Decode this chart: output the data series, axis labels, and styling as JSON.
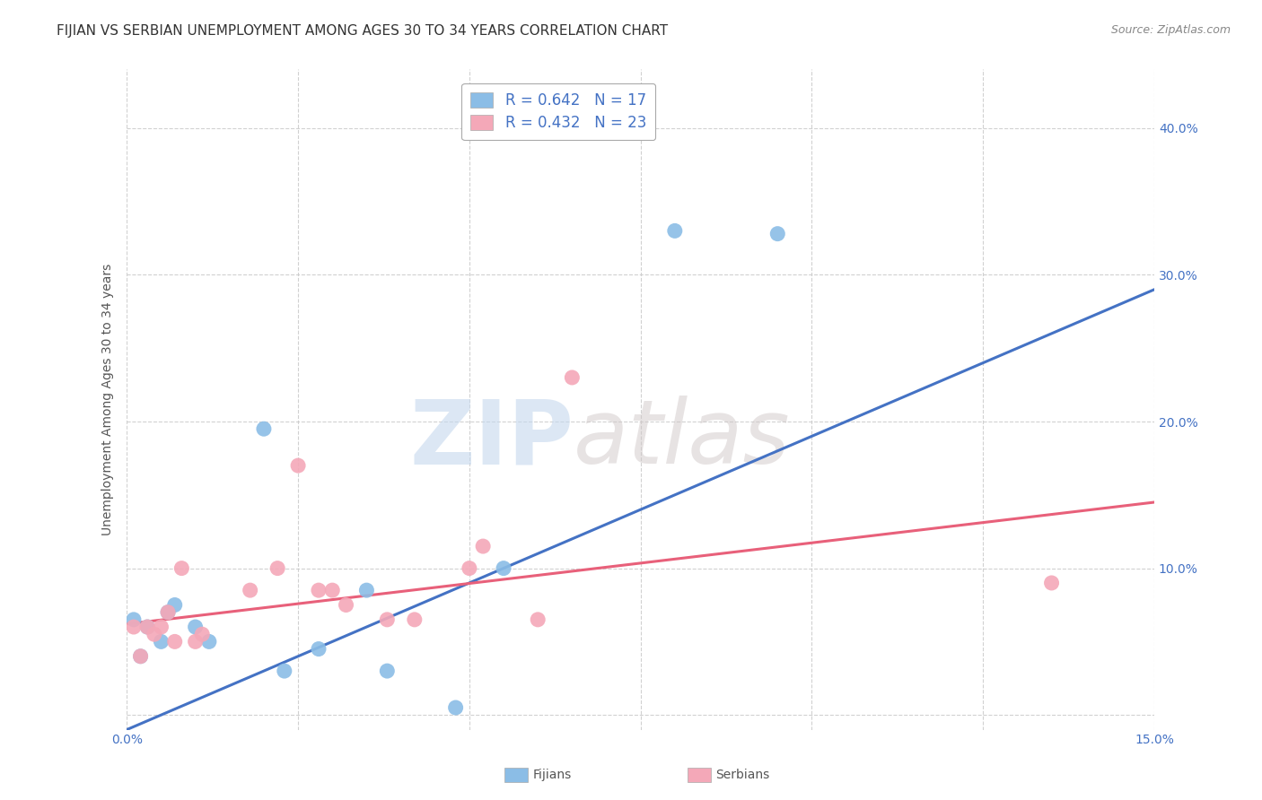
{
  "title": "FIJIAN VS SERBIAN UNEMPLOYMENT AMONG AGES 30 TO 34 YEARS CORRELATION CHART",
  "source": "Source: ZipAtlas.com",
  "ylabel": "Unemployment Among Ages 30 to 34 years",
  "xlim": [
    0.0,
    0.15
  ],
  "ylim": [
    -0.01,
    0.44
  ],
  "xticks": [
    0.0,
    0.025,
    0.05,
    0.075,
    0.1,
    0.125,
    0.15
  ],
  "xticklabels": [
    "0.0%",
    "",
    "",
    "",
    "",
    "",
    "15.0%"
  ],
  "yticks": [
    0.0,
    0.1,
    0.2,
    0.3,
    0.4
  ],
  "yticklabels": [
    "",
    "10.0%",
    "20.0%",
    "30.0%",
    "40.0%"
  ],
  "fijian_x": [
    0.001,
    0.002,
    0.003,
    0.005,
    0.006,
    0.007,
    0.01,
    0.012,
    0.02,
    0.023,
    0.028,
    0.035,
    0.038,
    0.048,
    0.055,
    0.08,
    0.095
  ],
  "fijian_y": [
    0.065,
    0.04,
    0.06,
    0.05,
    0.07,
    0.075,
    0.06,
    0.05,
    0.195,
    0.03,
    0.045,
    0.085,
    0.03,
    0.005,
    0.1,
    0.33,
    0.328
  ],
  "serbian_x": [
    0.001,
    0.002,
    0.003,
    0.004,
    0.005,
    0.006,
    0.007,
    0.008,
    0.01,
    0.011,
    0.018,
    0.022,
    0.025,
    0.028,
    0.03,
    0.032,
    0.038,
    0.042,
    0.05,
    0.052,
    0.06,
    0.065,
    0.135
  ],
  "serbian_y": [
    0.06,
    0.04,
    0.06,
    0.055,
    0.06,
    0.07,
    0.05,
    0.1,
    0.05,
    0.055,
    0.085,
    0.1,
    0.17,
    0.085,
    0.085,
    0.075,
    0.065,
    0.065,
    0.1,
    0.115,
    0.065,
    0.23,
    0.09
  ],
  "fijian_color": "#8bbde6",
  "serbian_color": "#f4a8b8",
  "fijian_line_color": "#4472c4",
  "serbian_line_color": "#e8607a",
  "fijian_R": 0.642,
  "fijian_N": 17,
  "serbian_R": 0.432,
  "serbian_N": 23,
  "background_color": "#ffffff",
  "grid_color": "#cccccc",
  "watermark_zip": "ZIP",
  "watermark_atlas": "atlas",
  "legend_labels": [
    "Fijians",
    "Serbians"
  ],
  "title_fontsize": 11,
  "axis_label_fontsize": 10,
  "tick_fontsize": 10,
  "blue_line_x0": 0.0,
  "blue_line_y0": -0.01,
  "blue_line_x1": 0.15,
  "blue_line_y1": 0.29,
  "pink_line_x0": 0.0,
  "pink_line_y0": 0.062,
  "pink_line_x1": 0.15,
  "pink_line_y1": 0.145
}
